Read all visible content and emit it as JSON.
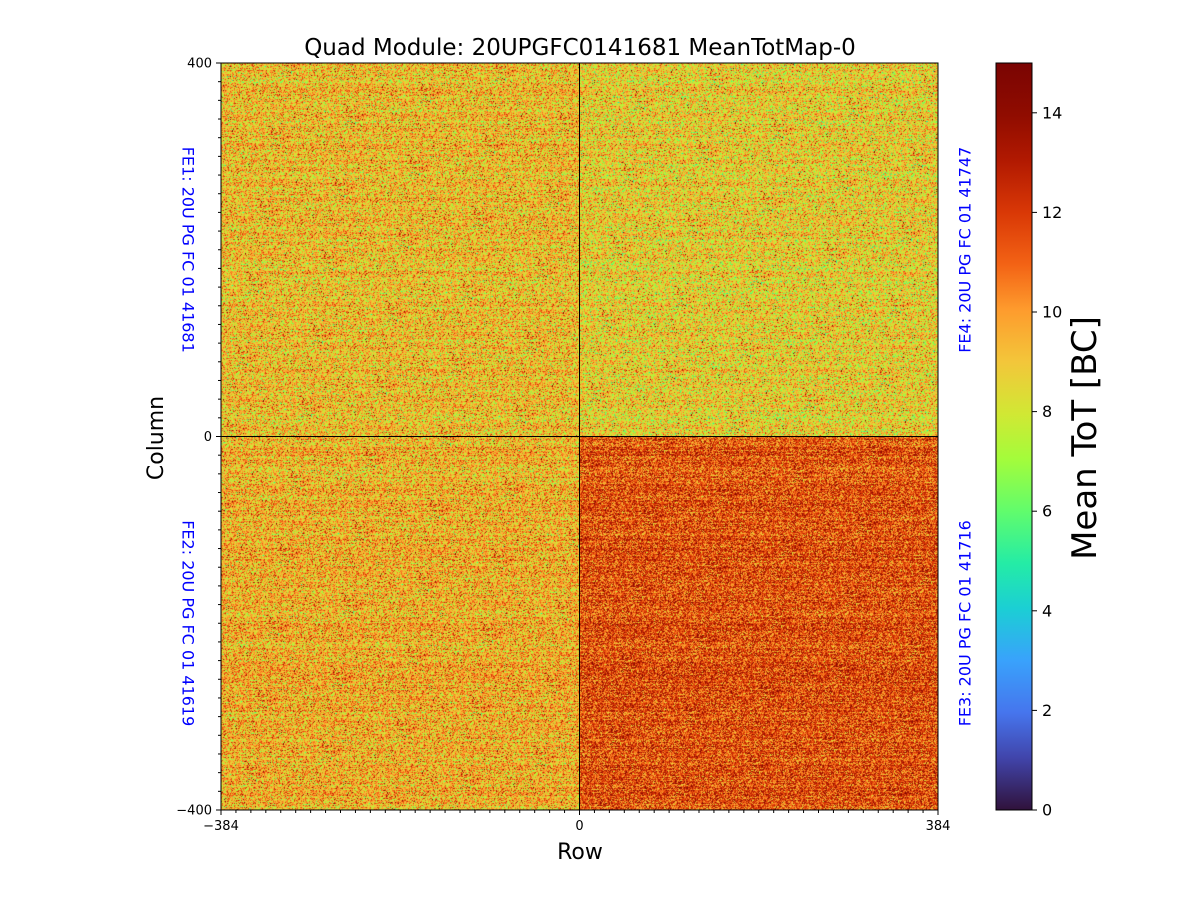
{
  "chart_data": {
    "type": "heatmap",
    "title": "Quad Module: 20UPGFC0141681 MeanTotMap-0",
    "xlabel": "Row",
    "ylabel": "Column",
    "xlim": [
      -384,
      384
    ],
    "ylim": [
      -400,
      400
    ],
    "x_ticks": [
      {
        "value": -384,
        "label": "−384"
      },
      {
        "value": 0,
        "label": "0"
      },
      {
        "value": 384,
        "label": "384"
      }
    ],
    "y_ticks": [
      {
        "value": 400,
        "label": "400"
      },
      {
        "value": 0,
        "label": "0"
      },
      {
        "value": -400,
        "label": "−400"
      }
    ],
    "colorbar": {
      "label": "Mean ToT [BC]",
      "colormap": "turbo",
      "range": [
        0,
        15
      ],
      "ticks": [
        {
          "value": 0,
          "label": "0"
        },
        {
          "value": 2,
          "label": "2"
        },
        {
          "value": 4,
          "label": "4"
        },
        {
          "value": 6,
          "label": "6"
        },
        {
          "value": 8,
          "label": "8"
        },
        {
          "value": 10,
          "label": "10"
        },
        {
          "value": 12,
          "label": "12"
        },
        {
          "value": 14,
          "label": "14"
        }
      ]
    },
    "chips": [
      {
        "name": "FE1",
        "label": "FE1: 20U PG FC 01 41681",
        "quadrant": "top-left",
        "label_side": "left",
        "approx_mean_tot": 9.2
      },
      {
        "name": "FE2",
        "label": "FE2: 20U PG FC 01 41619",
        "quadrant": "bottom-left",
        "label_side": "left",
        "approx_mean_tot": 9.5
      },
      {
        "name": "FE3",
        "label": "FE3: 20U PG FC 01 41716",
        "quadrant": "bottom-right",
        "label_side": "right",
        "approx_mean_tot": 11.5
      },
      {
        "name": "FE4",
        "label": "FE4: 20U PG FC 01 41747",
        "quadrant": "top-right",
        "label_side": "right",
        "approx_mean_tot": 8.8
      }
    ],
    "chip_label_color": "#0000ff",
    "divider_color": "#000000"
  }
}
